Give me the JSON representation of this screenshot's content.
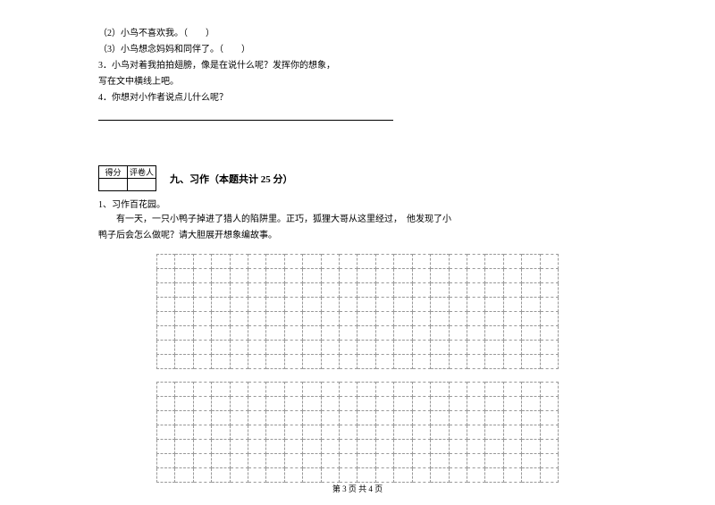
{
  "topItems": {
    "item1": "（2）小鸟不喜欢我。（　　）",
    "item2": "（3）小鸟想念妈妈和同伴了。（　　）",
    "item3": "3．小鸟对着我拍拍翅膀，像是在说什么呢？发挥你的想象，",
    "item3b": "写在文中横线上吧。",
    "item4": "4．你想对小作者说点儿什么呢？"
  },
  "scoreHeaders": {
    "score": "得分",
    "grader": "评卷人"
  },
  "sectionTitle": "九、习作（本题共计 25 分）",
  "intro": {
    "label": "1、习作百花园。",
    "text1": "有一天，一只小鸭子掉进了猎人的陷阱里。正巧，狐狸大哥从这里经过，　他发现了小",
    "text2": "鸭子后会怎么做呢？请大胆展开想象编故事。"
  },
  "footer": "第 3 页 共 4 页",
  "grid": {
    "cols": 22,
    "rows1": 8,
    "rows2": 7
  }
}
